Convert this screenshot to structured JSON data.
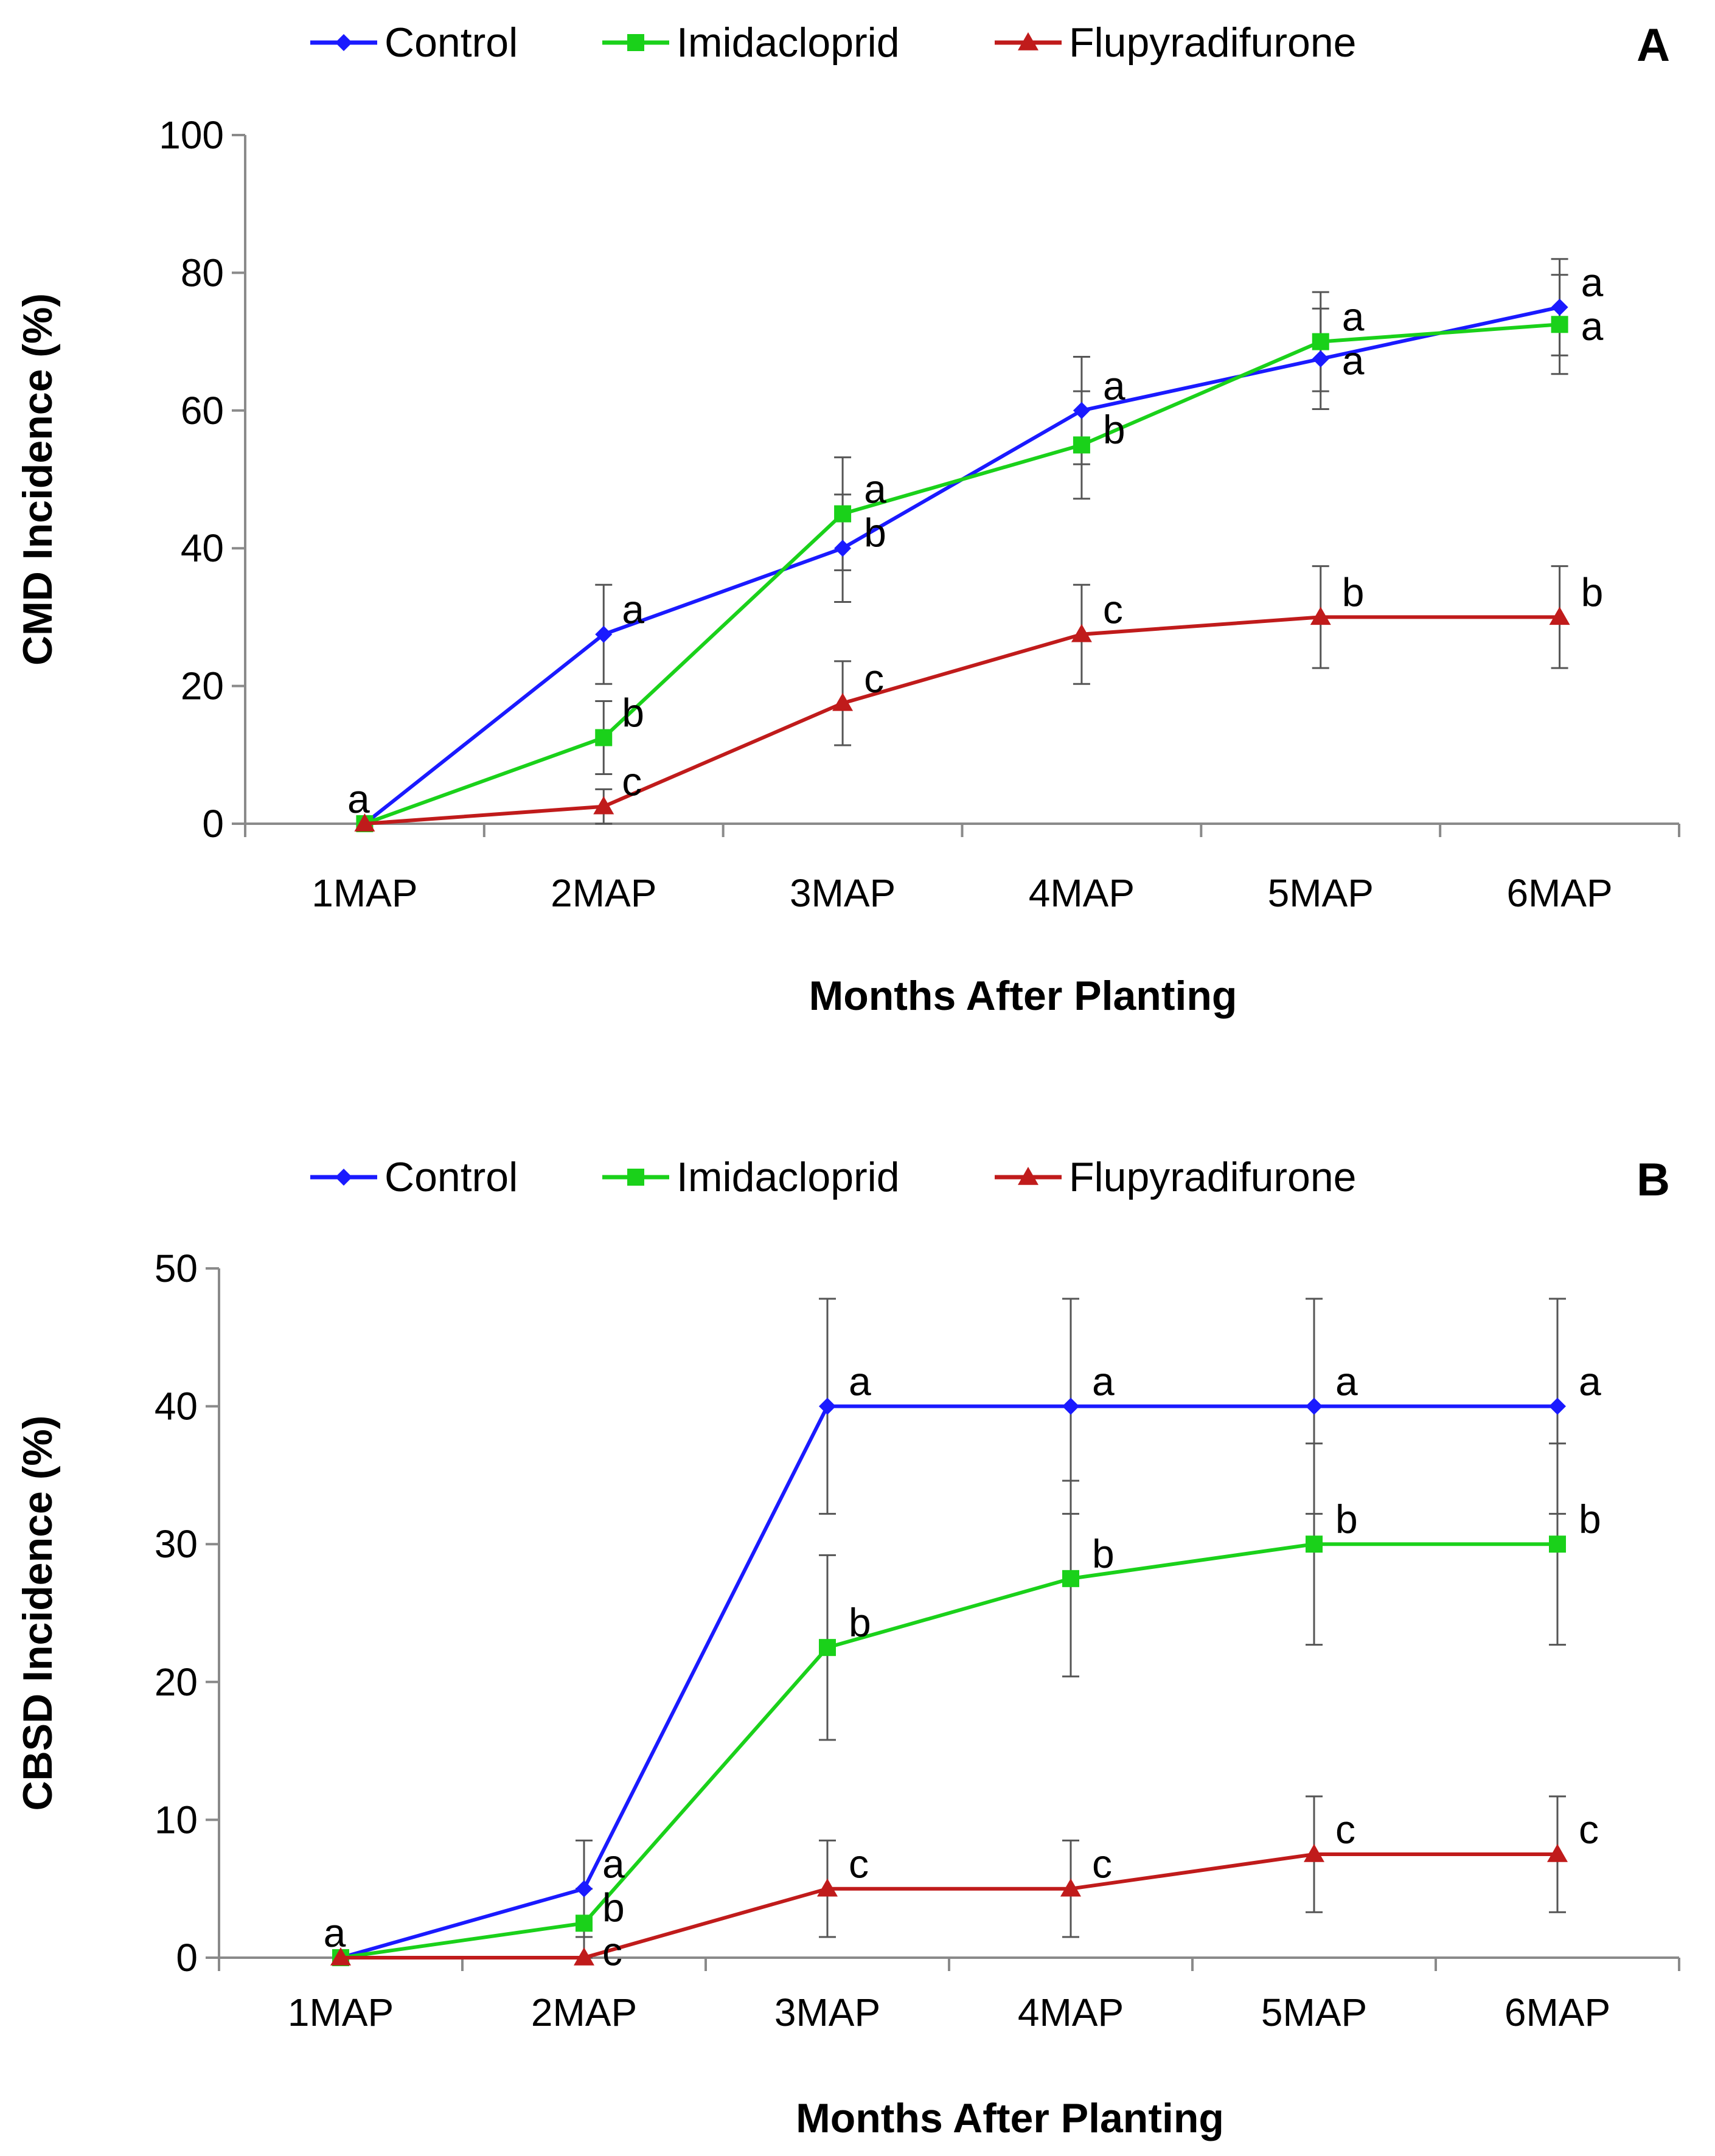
{
  "figure": {
    "panels": [
      "A",
      "B"
    ]
  },
  "colors": {
    "Control": "#1a1aff",
    "Imidacloprid": "#1ad11a",
    "Flupyradifurone": "#c01b1b"
  },
  "chart_data": [
    {
      "type": "line",
      "panel_letter": "A",
      "title": "",
      "xlabel": "Months After Planting",
      "ylabel": "CMD Incidence (%)",
      "ylim": [
        0,
        100
      ],
      "yticks": [
        0,
        20,
        40,
        60,
        80,
        100
      ],
      "grid": false,
      "legend_position": "top",
      "categories": [
        "1MAP",
        "2MAP",
        "3MAP",
        "4MAP",
        "5MAP",
        "6MAP"
      ],
      "series": [
        {
          "name": "Control",
          "marker": "diamond",
          "values": [
            0,
            27.5,
            40,
            60,
            67.5,
            75
          ],
          "errors": [
            0,
            7.2,
            7.8,
            7.8,
            7.3,
            7.0
          ],
          "labels": [
            "a",
            "a",
            "b",
            "a",
            "a",
            "a"
          ]
        },
        {
          "name": "Imidacloprid",
          "marker": "square",
          "values": [
            0,
            12.5,
            45,
            55,
            70,
            72.5
          ],
          "errors": [
            0,
            5.3,
            8.2,
            7.8,
            7.2,
            7.2
          ],
          "labels": [
            "",
            "b",
            "a",
            "b",
            "a",
            "a"
          ]
        },
        {
          "name": "Flupyradifurone",
          "marker": "triangle",
          "values": [
            0,
            2.5,
            17.5,
            27.5,
            30,
            30
          ],
          "errors": [
            0,
            2.5,
            6.1,
            7.2,
            7.4,
            7.4
          ],
          "labels": [
            "",
            "c",
            "c",
            "c",
            "b",
            "b"
          ]
        }
      ]
    },
    {
      "type": "line",
      "panel_letter": "B",
      "title": "",
      "xlabel": "Months After Planting",
      "ylabel": "CBSD Incidence (%)",
      "ylim": [
        0,
        50
      ],
      "yticks": [
        0,
        10,
        20,
        30,
        40,
        50
      ],
      "grid": false,
      "legend_position": "top",
      "categories": [
        "1MAP",
        "2MAP",
        "3MAP",
        "4MAP",
        "5MAP",
        "6MAP"
      ],
      "series": [
        {
          "name": "Control",
          "marker": "diamond",
          "values": [
            0,
            5,
            40,
            40,
            40,
            40
          ],
          "errors": [
            0,
            3.5,
            7.8,
            7.8,
            7.8,
            7.8
          ],
          "labels": [
            "a",
            "a",
            "a",
            "a",
            "a",
            "a"
          ]
        },
        {
          "name": "Imidacloprid",
          "marker": "square",
          "values": [
            0,
            2.5,
            22.5,
            27.5,
            30,
            30
          ],
          "errors": [
            0,
            2.5,
            6.7,
            7.1,
            7.3,
            7.3
          ],
          "labels": [
            "",
            "b",
            "b",
            "b",
            "b",
            "b"
          ]
        },
        {
          "name": "Flupyradifurone",
          "marker": "triangle",
          "values": [
            0,
            0,
            5,
            5,
            7.5,
            7.5
          ],
          "errors": [
            0,
            0,
            3.5,
            3.5,
            4.2,
            4.2
          ],
          "labels": [
            "",
            "c",
            "c",
            "c",
            "c",
            "c"
          ]
        }
      ]
    }
  ]
}
